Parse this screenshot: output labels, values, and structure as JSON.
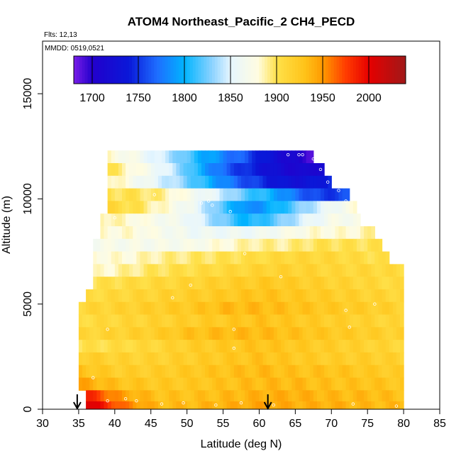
{
  "chart_data": {
    "type": "heatmap",
    "title": "ATOM4 Northeast_Pacific_2 CH4_PECD",
    "flights_label": "Flts: 12,13",
    "mmdd_label": "MMDD: 0519,0521",
    "xlabel": "Latitude (deg N)",
    "ylabel": "Altitude (m)",
    "xlim": [
      30,
      85
    ],
    "ylim": [
      0,
      17500
    ],
    "xticks": [
      "30",
      "35",
      "40",
      "45",
      "50",
      "55",
      "60",
      "65",
      "70",
      "75",
      "80",
      "85"
    ],
    "yticks": [
      "0",
      "5000",
      "10000",
      "15000"
    ],
    "colorbar": {
      "range": [
        1680,
        2040
      ],
      "ticks": [
        "1700",
        "1750",
        "1800",
        "1850",
        "1900",
        "1950",
        "2000"
      ],
      "stops": [
        {
          "v": 1680,
          "c": "#7a1ee8"
        },
        {
          "v": 1700,
          "c": "#2200cc"
        },
        {
          "v": 1740,
          "c": "#0a18d8"
        },
        {
          "v": 1770,
          "c": "#1e6cff"
        },
        {
          "v": 1800,
          "c": "#00b4ff"
        },
        {
          "v": 1830,
          "c": "#8cd2ff"
        },
        {
          "v": 1850,
          "c": "#e6f6ff"
        },
        {
          "v": 1880,
          "c": "#fffce0"
        },
        {
          "v": 1900,
          "c": "#ffe14a"
        },
        {
          "v": 1930,
          "c": "#ffc41a"
        },
        {
          "v": 1950,
          "c": "#ff9a00"
        },
        {
          "v": 1975,
          "c": "#ff3c00"
        },
        {
          "v": 2000,
          "c": "#e60000"
        },
        {
          "v": 2040,
          "c": "#a01818"
        }
      ]
    },
    "band_rows": [
      {
        "alt": 12000,
        "lat0": 39,
        "lat1": 67.5,
        "vals": [
          1880,
          1870,
          1850,
          1830,
          1800,
          1780,
          1760,
          1730,
          1710,
          1690
        ]
      },
      {
        "alt": 11400,
        "lat0": 39,
        "lat1": 69,
        "vals": [
          1900,
          1880,
          1860,
          1830,
          1790,
          1760,
          1740,
          1720,
          1710,
          1720
        ]
      },
      {
        "alt": 10800,
        "lat0": 39,
        "lat1": 70,
        "vals": [
          1890,
          1870,
          1850,
          1830,
          1800,
          1770,
          1750,
          1730,
          1730,
          1750
        ]
      },
      {
        "alt": 10200,
        "lat0": 39,
        "lat1": 72.5,
        "vals": [
          1900,
          1900,
          1890,
          1870,
          1850,
          1820,
          1800,
          1770,
          1750,
          1760
        ]
      },
      {
        "alt": 9600,
        "lat0": 39,
        "lat1": 73.5,
        "vals": [
          1910,
          1900,
          1880,
          1860,
          1820,
          1780,
          1800,
          1830,
          1860,
          1880
        ]
      },
      {
        "alt": 9000,
        "lat0": 38,
        "lat1": 74,
        "vals": [
          1890,
          1880,
          1870,
          1860,
          1830,
          1800,
          1820,
          1850,
          1870,
          1870
        ]
      },
      {
        "alt": 8400,
        "lat0": 38,
        "lat1": 76,
        "vals": [
          1880,
          1880,
          1870,
          1860,
          1860,
          1860,
          1870,
          1880,
          1880,
          1890
        ]
      },
      {
        "alt": 7800,
        "lat0": 37,
        "lat1": 77,
        "vals": [
          1870,
          1870,
          1870,
          1870,
          1880,
          1890,
          1890,
          1900,
          1900,
          1900
        ]
      },
      {
        "alt": 7200,
        "lat0": 37,
        "lat1": 78,
        "vals": [
          1880,
          1880,
          1890,
          1895,
          1900,
          1905,
          1910,
          1910,
          1905,
          1900
        ]
      },
      {
        "alt": 6600,
        "lat0": 37,
        "lat1": 80,
        "vals": [
          1880,
          1890,
          1900,
          1905,
          1910,
          1915,
          1915,
          1910,
          1910,
          1905
        ]
      },
      {
        "alt": 6000,
        "lat0": 37,
        "lat1": 80,
        "vals": [
          1900,
          1905,
          1910,
          1915,
          1920,
          1925,
          1920,
          1915,
          1910,
          1905
        ]
      },
      {
        "alt": 5400,
        "lat0": 36,
        "lat1": 80,
        "vals": [
          1905,
          1910,
          1915,
          1920,
          1925,
          1930,
          1925,
          1920,
          1915,
          1910
        ]
      },
      {
        "alt": 4800,
        "lat0": 35,
        "lat1": 80,
        "vals": [
          1910,
          1915,
          1920,
          1925,
          1935,
          1935,
          1930,
          1925,
          1920,
          1915
        ]
      },
      {
        "alt": 4200,
        "lat0": 35,
        "lat1": 80,
        "vals": [
          1905,
          1910,
          1915,
          1920,
          1925,
          1930,
          1925,
          1920,
          1915,
          1910
        ]
      },
      {
        "alt": 3600,
        "lat0": 35,
        "lat1": 80,
        "vals": [
          1910,
          1915,
          1920,
          1930,
          1935,
          1935,
          1930,
          1925,
          1920,
          1915
        ]
      },
      {
        "alt": 3000,
        "lat0": 35,
        "lat1": 80,
        "vals": [
          1900,
          1905,
          1910,
          1920,
          1925,
          1930,
          1925,
          1920,
          1915,
          1910
        ]
      },
      {
        "alt": 2400,
        "lat0": 35,
        "lat1": 80,
        "vals": [
          1920,
          1915,
          1915,
          1920,
          1925,
          1930,
          1925,
          1920,
          1920,
          1915
        ]
      },
      {
        "alt": 1800,
        "lat0": 35,
        "lat1": 80,
        "vals": [
          1930,
          1920,
          1920,
          1925,
          1930,
          1935,
          1930,
          1930,
          1925,
          1920
        ]
      },
      {
        "alt": 1200,
        "lat0": 35,
        "lat1": 80,
        "vals": [
          1945,
          1930,
          1925,
          1925,
          1930,
          1935,
          1935,
          1930,
          1930,
          1925
        ]
      },
      {
        "alt": 600,
        "lat0": 36,
        "lat1": 80,
        "vals": [
          1985,
          1945,
          1930,
          1930,
          1935,
          1940,
          1940,
          1935,
          1935,
          1930
        ]
      },
      {
        "alt": 150,
        "lat0": 36,
        "lat1": 80,
        "vals": [
          2010,
          1960,
          1935,
          1935,
          1940,
          1945,
          1940,
          1940,
          1935,
          1935
        ]
      }
    ],
    "sample_points": [
      {
        "lat": 64,
        "alt": 12100
      },
      {
        "lat": 65.5,
        "alt": 12100
      },
      {
        "lat": 66,
        "alt": 12100
      },
      {
        "lat": 67.5,
        "alt": 11900
      },
      {
        "lat": 68.5,
        "alt": 11400
      },
      {
        "lat": 69.5,
        "alt": 10800
      },
      {
        "lat": 71,
        "alt": 10400
      },
      {
        "lat": 72,
        "alt": 9900
      },
      {
        "lat": 52,
        "alt": 9800
      },
      {
        "lat": 53.5,
        "alt": 9700
      },
      {
        "lat": 53,
        "alt": 9900
      },
      {
        "lat": 56,
        "alt": 9400
      },
      {
        "lat": 45.5,
        "alt": 10200
      },
      {
        "lat": 40,
        "alt": 9100
      },
      {
        "lat": 58,
        "alt": 7400
      },
      {
        "lat": 63,
        "alt": 6300
      },
      {
        "lat": 48,
        "alt": 5300
      },
      {
        "lat": 50.5,
        "alt": 5900
      },
      {
        "lat": 72,
        "alt": 4700
      },
      {
        "lat": 76,
        "alt": 5000
      },
      {
        "lat": 72.5,
        "alt": 3900
      },
      {
        "lat": 56.5,
        "alt": 3800
      },
      {
        "lat": 56.5,
        "alt": 2900
      },
      {
        "lat": 39,
        "alt": 3800
      },
      {
        "lat": 37,
        "alt": 1500
      },
      {
        "lat": 39,
        "alt": 400
      },
      {
        "lat": 41.5,
        "alt": 500
      },
      {
        "lat": 43,
        "alt": 400
      },
      {
        "lat": 49.5,
        "alt": 300
      },
      {
        "lat": 57.5,
        "alt": 300
      },
      {
        "lat": 62,
        "alt": 200
      },
      {
        "lat": 73,
        "alt": 250
      },
      {
        "lat": 79,
        "alt": 150
      },
      {
        "lat": 46.5,
        "alt": 250
      },
      {
        "lat": 54,
        "alt": 200
      }
    ],
    "arrows": [
      {
        "lat": 34.8
      },
      {
        "lat": 61.2
      }
    ]
  }
}
